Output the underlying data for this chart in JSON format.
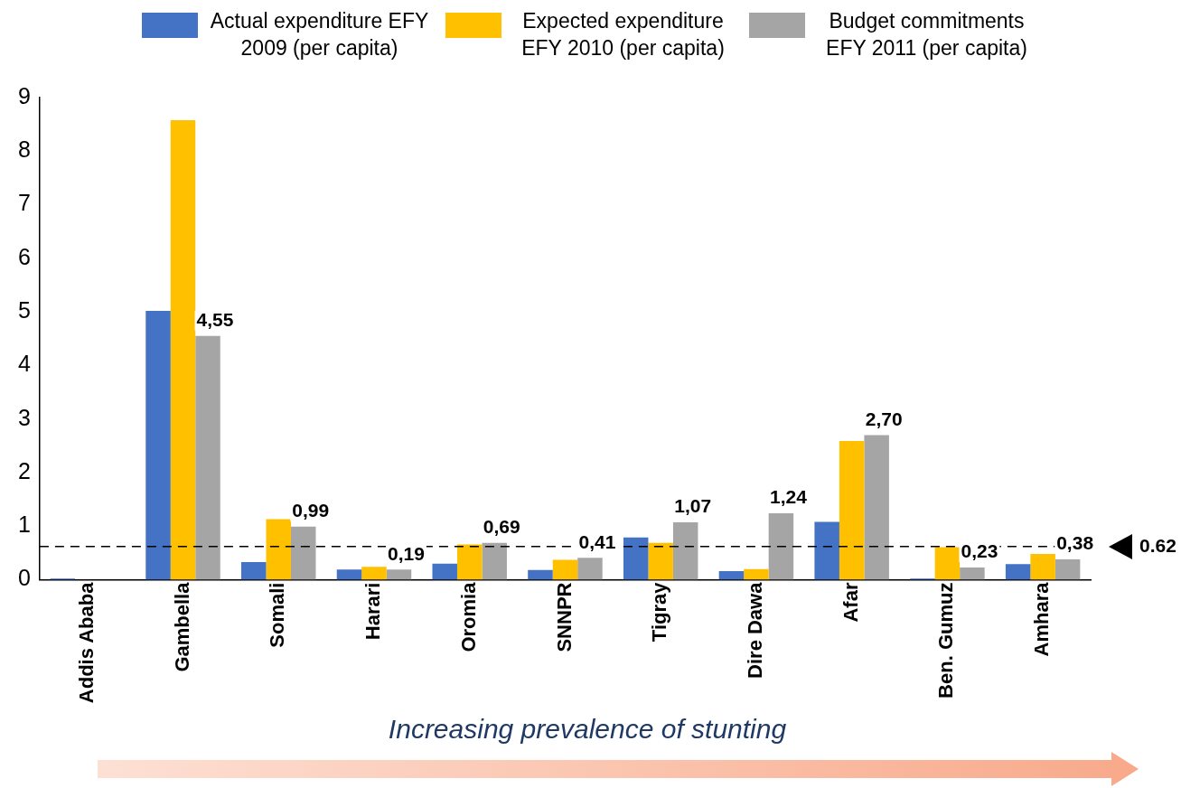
{
  "chart_data": {
    "type": "bar",
    "categories": [
      "Addis Ababa",
      "Gambella",
      "Somali",
      "Harari",
      "Oromia",
      "SNNPR",
      "Tigray",
      "Dire Dawa",
      "Afar",
      "Ben. Gumuz",
      "Amhara"
    ],
    "series": [
      {
        "name": "Actual expenditure EFY 2009 (per capita)",
        "color": "#4472c4",
        "values": [
          0.02,
          5.02,
          0.33,
          0.19,
          0.3,
          0.18,
          0.79,
          0.16,
          1.08,
          0.02,
          0.29
        ]
      },
      {
        "name": "Expected expenditure EFY 2010 (per capita)",
        "color": "#ffc000",
        "values": [
          null,
          8.58,
          1.13,
          0.24,
          0.66,
          0.37,
          0.69,
          0.2,
          2.59,
          0.61,
          0.48
        ]
      },
      {
        "name": "Budget commitments EFY 2011 (per capita)",
        "color": "#a5a5a5",
        "values": [
          null,
          4.55,
          0.99,
          0.19,
          0.69,
          0.41,
          1.07,
          1.24,
          2.7,
          0.23,
          0.38
        ],
        "value_labels": [
          null,
          "4,55",
          "0,99",
          "0,19",
          "0,69",
          "0,41",
          "1,07",
          "1,24",
          "2,70",
          "0,23",
          "0,38"
        ]
      }
    ],
    "ylim": [
      0,
      9
    ],
    "yticks": [
      0,
      1,
      2,
      3,
      4,
      5,
      6,
      7,
      8,
      9
    ],
    "grid": false,
    "legend": "top",
    "ref_lines": [
      {
        "axis": "y",
        "value": 0.62,
        "label": "0.62",
        "line_style": "dashed",
        "color": "#000000"
      }
    ],
    "annotations": [
      "Increasing prevalence of stunting"
    ]
  }
}
